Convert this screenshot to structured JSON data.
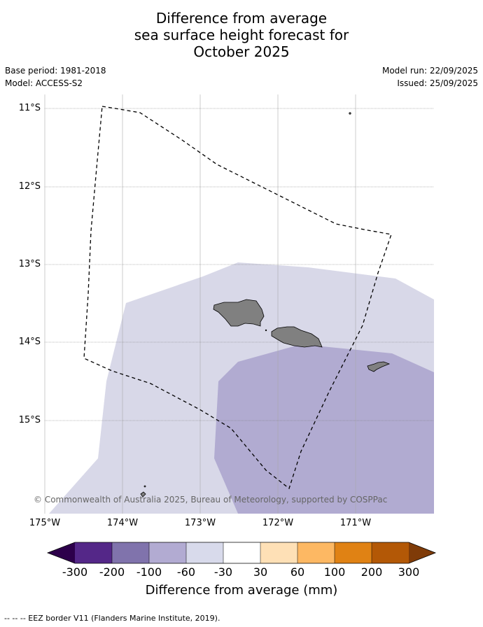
{
  "title": {
    "line1": "Difference from average",
    "line2": "sea surface height forecast for",
    "line3": "October 2025"
  },
  "meta": {
    "base_period": "Base period: 1981-2018",
    "model": "Model: ACCESS-S2",
    "model_run": "Model run: 22/09/2025",
    "issued": "Issued: 25/09/2025"
  },
  "map": {
    "lat_labels": [
      "11°S",
      "12°S",
      "13°S",
      "14°S",
      "15°S"
    ],
    "lon_labels": [
      "175°W",
      "174°W",
      "173°W",
      "172°W",
      "171°W"
    ],
    "copyright": "© Commonwealth of Australia 2025, Bureau of Meteorology, supported by COSPPac",
    "shading": [
      {
        "category": "-60 to -30 mm",
        "color": "#d8d8e8"
      },
      {
        "category": "-100 to -60 mm",
        "color": "#b1abd1"
      }
    ],
    "land_color": "#808080"
  },
  "colorbar": {
    "title": "Difference from average (mm)",
    "labels": [
      "-300",
      "-200",
      "-100",
      "-60",
      "-30",
      "30",
      "60",
      "100",
      "200",
      "300"
    ],
    "colors": [
      "#2d004b",
      "#542788",
      "#8073ac",
      "#b2abd2",
      "#d8daeb",
      "#ffffff",
      "#fee0b6",
      "#fdb863",
      "#e08214",
      "#b35806",
      "#7f3b08"
    ]
  },
  "legend": {
    "text": "-- -- -- EEZ border V11 (Flanders Marine Institute, 2019)."
  }
}
